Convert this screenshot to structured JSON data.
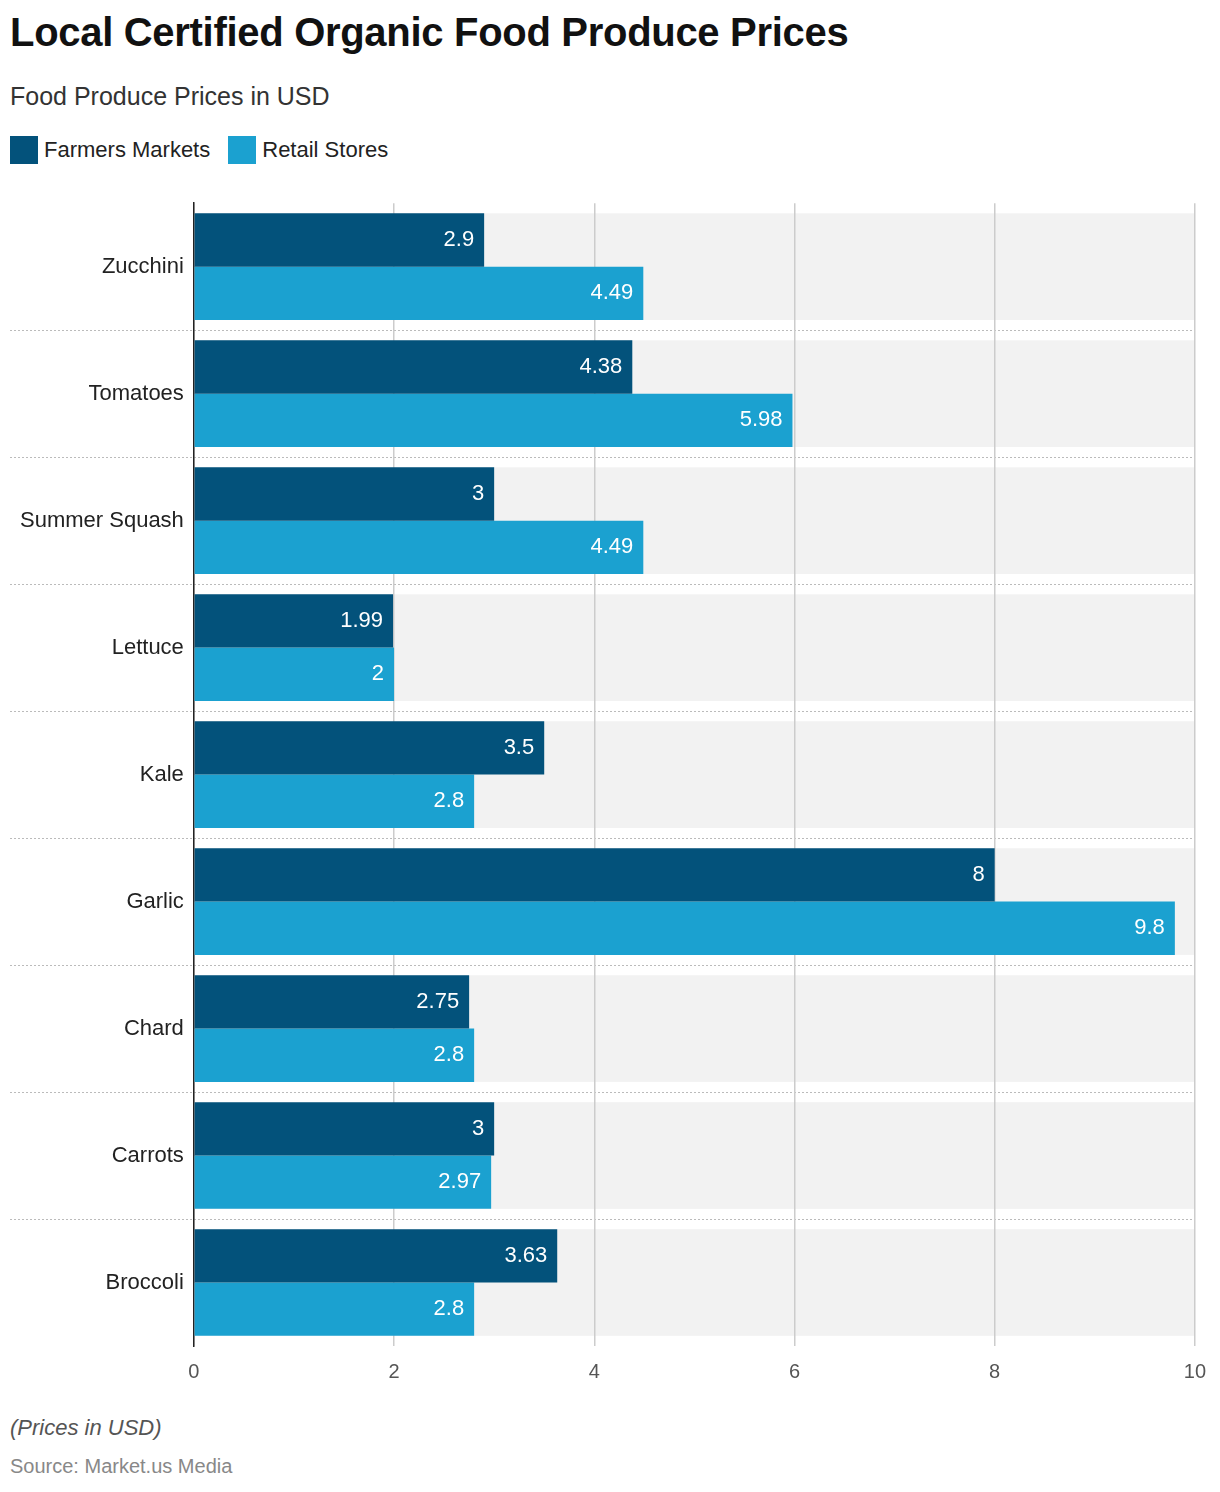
{
  "chart_data": {
    "type": "bar",
    "title": "Local Certified Organic Food Produce Prices",
    "subtitle": "Food Produce Prices in USD",
    "footnote": "(Prices in USD)",
    "source": "Source: Market.us Media",
    "orientation": "horizontal",
    "categories": [
      "Zucchini",
      "Tomatoes",
      "Summer Squash",
      "Lettuce",
      "Kale",
      "Garlic",
      "Chard",
      "Carrots",
      "Broccoli"
    ],
    "series": [
      {
        "name": "Farmers Markets",
        "color": "#03527b",
        "values": [
          2.9,
          4.38,
          3,
          1.99,
          3.5,
          8,
          2.75,
          3,
          3.63
        ]
      },
      {
        "name": "Retail Stores",
        "color": "#1ba1d0",
        "values": [
          4.49,
          5.98,
          4.49,
          2,
          2.8,
          9.8,
          2.8,
          2.97,
          2.8
        ]
      }
    ],
    "xlim": [
      0,
      10
    ],
    "xticks": [
      0,
      2,
      4,
      6,
      8,
      10
    ],
    "grid": true,
    "legend": "top-left",
    "data_labels": true
  }
}
